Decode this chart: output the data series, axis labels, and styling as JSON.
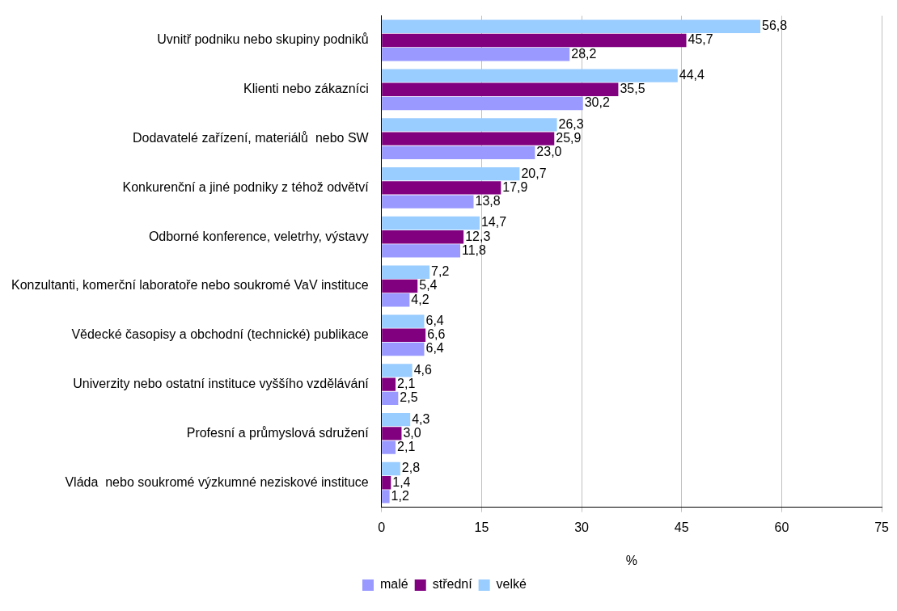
{
  "chart_data": {
    "type": "bar",
    "orientation": "horizontal",
    "xlabel": "%",
    "categories": [
      "Uvnitř podniku nebo skupiny podniků",
      "Klienti nebo zákazníci",
      "Dodavatelé zařízení, materiálů  nebo SW",
      "Konkurenční a jiné podniky z téhož odvětví",
      "Odborné konference, veletrhy, výstavy",
      "Konzultanti, komerční laboratoře nebo soukromé VaV instituce",
      "Vědecké časopisy a obchodní (technické) publikace",
      "Univerzity nebo ostatní instituce vyššího vzdělávání",
      "Profesní a průmyslová sdružení",
      "Vláda  nebo soukromé výzkumné neziskové instituce"
    ],
    "series": [
      {
        "name": "malé",
        "color": "#9999ff",
        "values": [
          28.2,
          30.2,
          23.0,
          13.8,
          11.8,
          4.2,
          6.4,
          2.5,
          2.1,
          1.2
        ],
        "value_labels": [
          "28,2",
          "30,2",
          "23,0",
          "13,8",
          "11,8",
          "4,2",
          "6,4",
          "2,5",
          "2,1",
          "1,2"
        ]
      },
      {
        "name": "střední",
        "color": "#800080",
        "values": [
          45.7,
          35.5,
          25.9,
          17.9,
          12.3,
          5.4,
          6.6,
          2.1,
          3.0,
          1.4
        ],
        "value_labels": [
          "45,7",
          "35,5",
          "25,9",
          "17,9",
          "12,3",
          "5,4",
          "6,6",
          "2,1",
          "3,0",
          "1,4"
        ]
      },
      {
        "name": "velké",
        "color": "#99ccff",
        "values": [
          56.8,
          44.4,
          26.3,
          20.7,
          14.7,
          7.2,
          6.4,
          4.6,
          4.3,
          2.8
        ],
        "value_labels": [
          "56,8",
          "44,4",
          "26,3",
          "20,7",
          "14,7",
          "7,2",
          "6,4",
          "4,6",
          "4,3",
          "2,8"
        ]
      }
    ],
    "xlim": [
      0,
      75
    ],
    "xticks": [
      0,
      15,
      30,
      45,
      60,
      75
    ],
    "grid": "x",
    "legend": "bottom"
  }
}
